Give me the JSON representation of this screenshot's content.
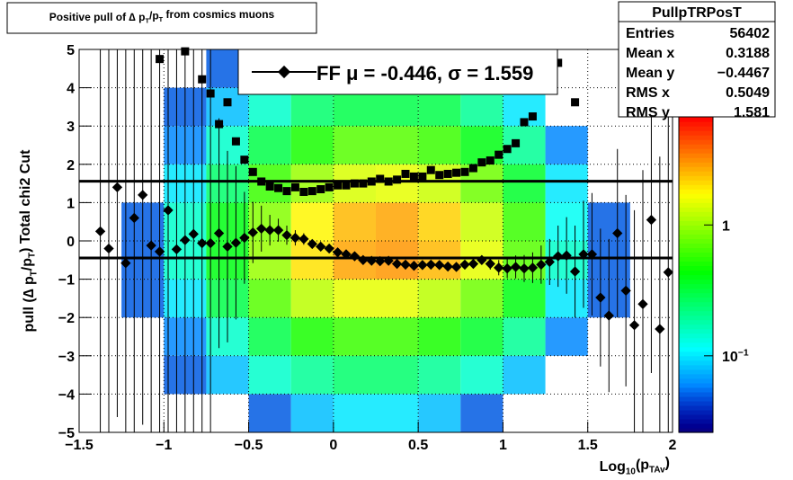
{
  "chart_data": {
    "type": "scatter",
    "title_parts": [
      "Positive pull of ∆ p",
      "T",
      "/p",
      "T",
      " from cosmics muons"
    ],
    "x_label_parts": [
      "Log",
      "10",
      "(p",
      "TAv",
      ")"
    ],
    "y_label_parts": [
      "pull (∆ p",
      "T",
      "/p",
      "T",
      ")  Total chi2 Cut"
    ],
    "xlim": [
      -1.5,
      2
    ],
    "ylim": [
      -5,
      5
    ],
    "xticks": [
      {
        "value": -1.5,
        "label": "−1.5"
      },
      {
        "value": -1,
        "label": "−1"
      },
      {
        "value": -0.5,
        "label": "−0.5"
      },
      0,
      0.5,
      1,
      1.5,
      2
    ],
    "yticks": [
      {
        "value": -5,
        "label": "−5"
      },
      {
        "value": -4,
        "label": "−4"
      },
      {
        "value": -3,
        "label": "−3"
      },
      {
        "value": -2,
        "label": "−2"
      },
      {
        "value": -1,
        "label": "−1"
      },
      0,
      1,
      2,
      3,
      4,
      5
    ],
    "grid": true,
    "zlim": [
      0.026,
      6.7
    ],
    "log_z": true,
    "zticks": [
      {
        "value": 0.1,
        "label": "10",
        "exponent": "−1"
      },
      1
    ],
    "heatmap": {
      "xbins": [
        -1.5,
        -1.25,
        -1,
        -0.75,
        -0.5,
        -0.25,
        0,
        0.25,
        0.5,
        0.75,
        1,
        1.25,
        1.5,
        1.75,
        2
      ],
      "ybins": [
        -5,
        -4,
        -3,
        -2,
        -1,
        0,
        1,
        2,
        3,
        4,
        5
      ],
      "z": [
        [
          0,
          0,
          0,
          0,
          0.05,
          0.08,
          0.1,
          0.1,
          0.08,
          0.05,
          0,
          0,
          0,
          0
        ],
        [
          0,
          0,
          0.05,
          0.08,
          0.15,
          0.2,
          0.25,
          0.25,
          0.2,
          0.15,
          0.08,
          0,
          0,
          0
        ],
        [
          0,
          0,
          0.06,
          0.15,
          0.3,
          0.5,
          0.6,
          0.6,
          0.5,
          0.35,
          0.2,
          0.06,
          0,
          0
        ],
        [
          0,
          0.05,
          0.1,
          0.3,
          0.7,
          1.2,
          1.5,
          1.5,
          1.2,
          0.8,
          0.4,
          0.1,
          0.05,
          0
        ],
        [
          0,
          0.05,
          0.15,
          0.4,
          1.0,
          2.0,
          2.8,
          3,
          2.5,
          1.5,
          0.7,
          0.15,
          0.05,
          0
        ],
        [
          0,
          0.05,
          0.15,
          0.4,
          0.9,
          1.8,
          2.5,
          2.8,
          2.2,
          1.3,
          0.6,
          0.12,
          0.05,
          0
        ],
        [
          0,
          0,
          0.1,
          0.25,
          0.6,
          1.0,
          1.4,
          1.5,
          1.3,
          0.8,
          0.35,
          0.1,
          0,
          0
        ],
        [
          0,
          0,
          0.06,
          0.15,
          0.3,
          0.5,
          0.7,
          0.7,
          0.6,
          0.4,
          0.2,
          0.06,
          0,
          0
        ],
        [
          0,
          0,
          0.05,
          0.08,
          0.15,
          0.25,
          0.3,
          0.3,
          0.3,
          0.2,
          0.1,
          0,
          0,
          0
        ],
        [
          0,
          0,
          0,
          0.05,
          0.08,
          0.1,
          0.15,
          0.15,
          0.12,
          0.1,
          0.05,
          0,
          0,
          0
        ]
      ]
    },
    "x": [
      -1.375,
      -1.325,
      -1.275,
      -1.225,
      -1.175,
      -1.125,
      -1.075,
      -1.025,
      -0.975,
      -0.925,
      -0.875,
      -0.825,
      -0.775,
      -0.725,
      -0.675,
      -0.625,
      -0.575,
      -0.525,
      -0.475,
      -0.425,
      -0.375,
      -0.325,
      -0.275,
      -0.225,
      -0.175,
      -0.125,
      -0.075,
      -0.025,
      0.025,
      0.075,
      0.125,
      0.175,
      0.225,
      0.275,
      0.325,
      0.375,
      0.425,
      0.475,
      0.525,
      0.575,
      0.625,
      0.675,
      0.725,
      0.775,
      0.825,
      0.875,
      0.925,
      0.975,
      1.025,
      1.075,
      1.125,
      1.175,
      1.225,
      1.275,
      1.325,
      1.375,
      1.425,
      1.475,
      1.525,
      1.575,
      1.625,
      1.675,
      1.725,
      1.775,
      1.825,
      1.875,
      1.925,
      1.975
    ],
    "series": [
      {
        "marker": "diamond",
        "color": "#000000",
        "values": [
          0.25,
          -0.2,
          1.4,
          -0.58,
          0.6,
          1.2,
          -0.12,
          -0.28,
          0.8,
          -0.22,
          0.02,
          0.18,
          -0.06,
          -0.06,
          0.2,
          -0.15,
          -0.05,
          0.08,
          0.22,
          0.32,
          0.28,
          0.28,
          0.15,
          0.08,
          0.05,
          -0.08,
          -0.15,
          -0.2,
          -0.3,
          -0.35,
          -0.4,
          -0.5,
          -0.52,
          -0.53,
          -0.52,
          -0.6,
          -0.62,
          -0.65,
          -0.63,
          -0.62,
          -0.63,
          -0.67,
          -0.68,
          -0.62,
          -0.6,
          -0.5,
          -0.6,
          -0.7,
          -0.72,
          -0.68,
          -0.72,
          -0.7,
          -0.62,
          -0.55,
          -0.4,
          -0.38,
          -0.8,
          -0.35,
          -0.35,
          -1.48,
          -1.95,
          0.2,
          -1.3,
          -2.2,
          -1.65,
          0.55,
          -2.3,
          -0.82
        ],
        "errors": [
          6,
          6,
          6,
          6,
          6,
          6,
          6,
          6,
          6,
          6,
          6,
          6,
          6,
          6,
          3,
          2.5,
          2,
          1.2,
          0.8,
          0.6,
          0.4,
          0.3,
          0.25,
          0.2,
          0.15,
          0.1,
          0.1,
          0.1,
          0.1,
          0.1,
          0.1,
          0.1,
          0.1,
          0.1,
          0.1,
          0.1,
          0.1,
          0.1,
          0.1,
          0.1,
          0.1,
          0.1,
          0.1,
          0.1,
          0.1,
          0.1,
          0.15,
          0.2,
          0.25,
          0.3,
          0.35,
          0.4,
          0.5,
          0.6,
          0.8,
          1.0,
          1.2,
          1.4,
          1.6,
          1.8,
          2,
          2.2,
          2.5,
          3,
          3.5,
          4,
          4.5,
          5
        ]
      },
      {
        "marker": "square",
        "color": "#000000",
        "values": [
          null,
          null,
          null,
          null,
          null,
          null,
          null,
          4.75,
          null,
          null,
          4.95,
          null,
          4.22,
          3.85,
          3.05,
          3.62,
          2.6,
          2.12,
          1.8,
          1.55,
          1.42,
          1.38,
          1.3,
          1.4,
          1.28,
          1.3,
          1.35,
          1.4,
          1.45,
          1.45,
          1.5,
          1.5,
          1.55,
          1.62,
          1.55,
          1.6,
          1.75,
          1.68,
          1.68,
          1.85,
          1.72,
          1.75,
          1.78,
          1.8,
          1.9,
          2.05,
          2.1,
          2.25,
          2.4,
          2.55,
          3.1,
          3.25,
          null,
          null,
          4.65,
          null,
          3.62,
          null,
          null,
          null,
          null,
          null,
          null,
          null,
          null,
          null,
          null,
          null
        ]
      }
    ],
    "fit_lines": [
      -0.446,
      1.559
    ],
    "legend_label": "FF μ = -0.446, σ =   1.559",
    "stats": {
      "title": "PullpTRPosT",
      "rows": [
        [
          "Entries",
          "56402"
        ],
        [
          "Mean x",
          "0.3188"
        ],
        [
          "Mean y",
          "−0.4467"
        ],
        [
          "RMS x",
          "0.5049"
        ],
        [
          "RMS y",
          "1.581"
        ]
      ]
    }
  }
}
